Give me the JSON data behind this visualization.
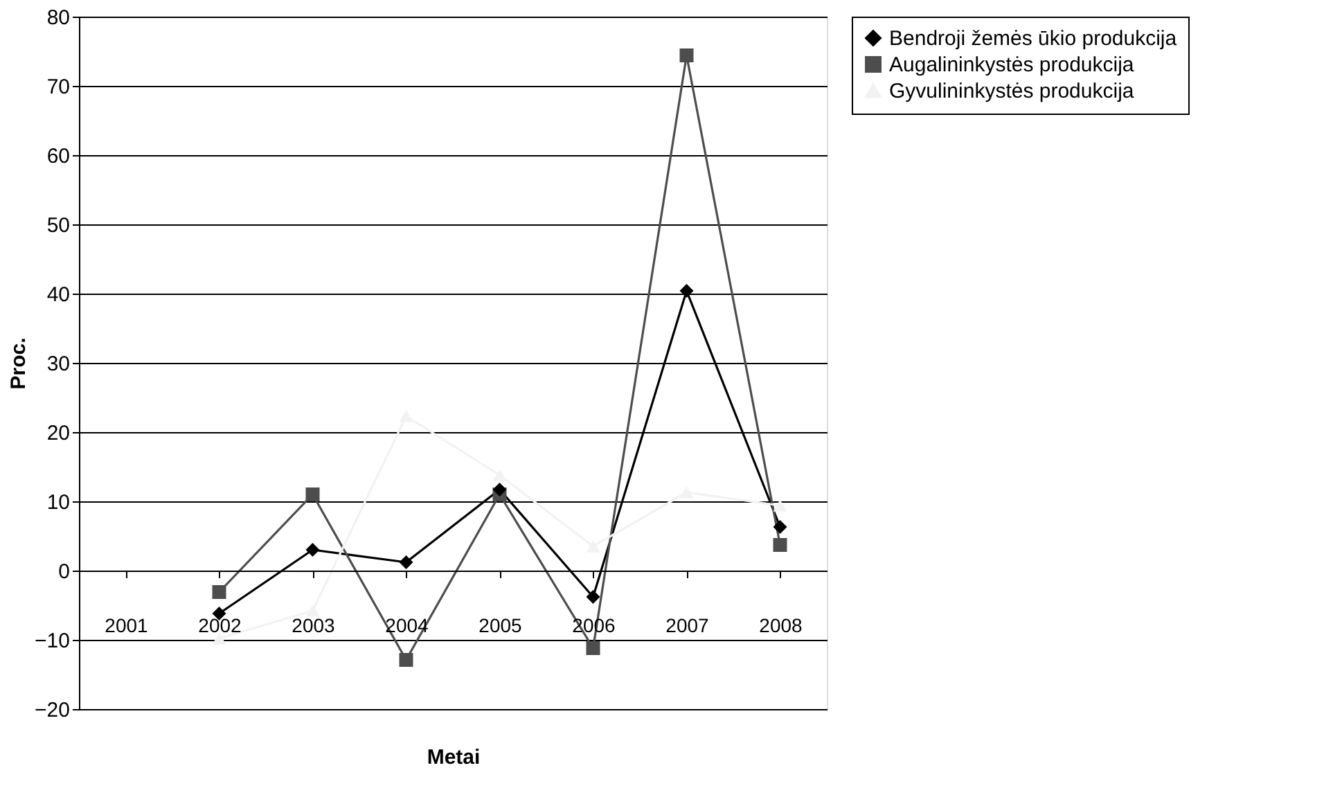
{
  "chart_data": {
    "type": "line",
    "xlabel": "Metai",
    "ylabel": "Proc.",
    "categories": [
      "2001",
      "2002",
      "2003",
      "2004",
      "2005",
      "2006",
      "2007",
      "2008"
    ],
    "series": [
      {
        "name": "Bendroji žemės ūkio produkcija",
        "color": "#000000",
        "marker": "diamond",
        "values": [
          null,
          -6.2,
          3.0,
          1.2,
          11.7,
          -3.8,
          40.4,
          6.3
        ]
      },
      {
        "name": "Augalininkystės produkcija",
        "color": "#4d4d4d",
        "marker": "square",
        "values": [
          null,
          -3.1,
          11.0,
          -12.9,
          11.0,
          -11.2,
          74.4,
          3.7
        ]
      },
      {
        "name": "Gyvulininkystės produkcija",
        "color": "#f2f2f2",
        "marker": "triangle",
        "values": [
          null,
          -9.8,
          -5.8,
          22.3,
          13.8,
          3.5,
          11.3,
          9.4
        ]
      }
    ],
    "ylim": [
      -20,
      80
    ],
    "yticks": [
      -20,
      -10,
      0,
      10,
      20,
      30,
      40,
      50,
      60,
      70,
      80
    ],
    "grid": "y",
    "legend": "right"
  }
}
